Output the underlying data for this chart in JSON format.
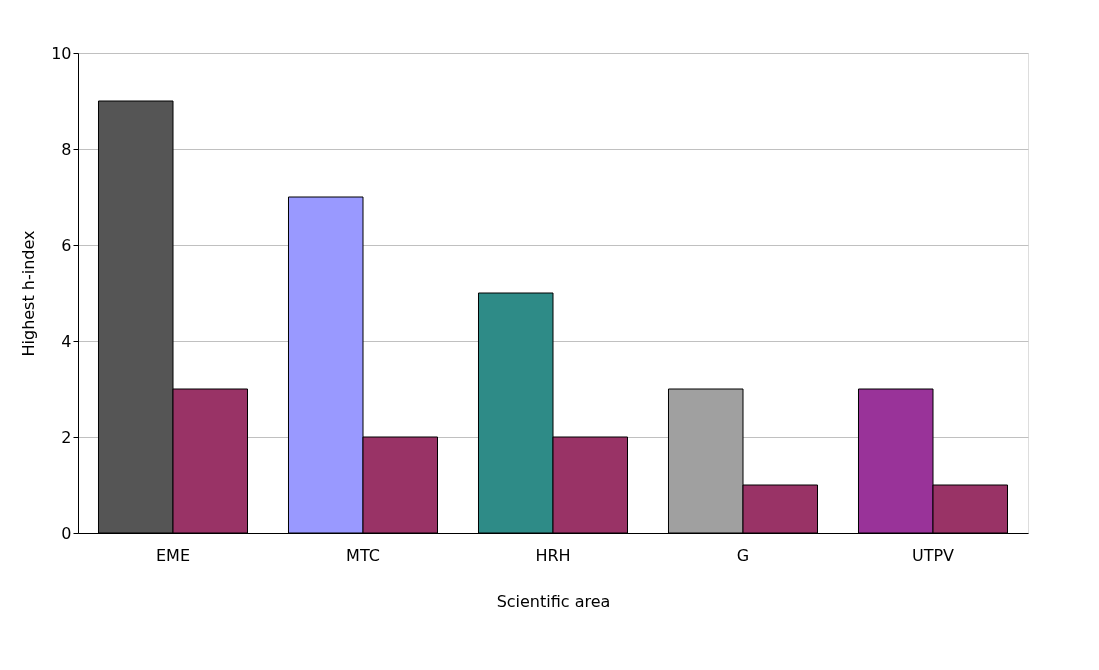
{
  "chart_data": {
    "type": "bar",
    "xlabel": "Scientific area",
    "ylabel": "Highest h-index",
    "categories": [
      "EME",
      "MTC",
      "HRH",
      "G",
      "UTPV"
    ],
    "series": [
      {
        "colors": [
          "#555555",
          "#9999ff",
          "#2e8b87",
          "#a0a0a0",
          "#993399"
        ],
        "values": [
          9,
          7,
          5,
          3,
          3
        ]
      },
      {
        "color": "#993366",
        "values": [
          3,
          2,
          2,
          1,
          1
        ]
      }
    ],
    "ylim": [
      0,
      10
    ],
    "yticks": [
      0,
      2,
      4,
      6,
      8,
      10
    ],
    "grid": "y"
  }
}
